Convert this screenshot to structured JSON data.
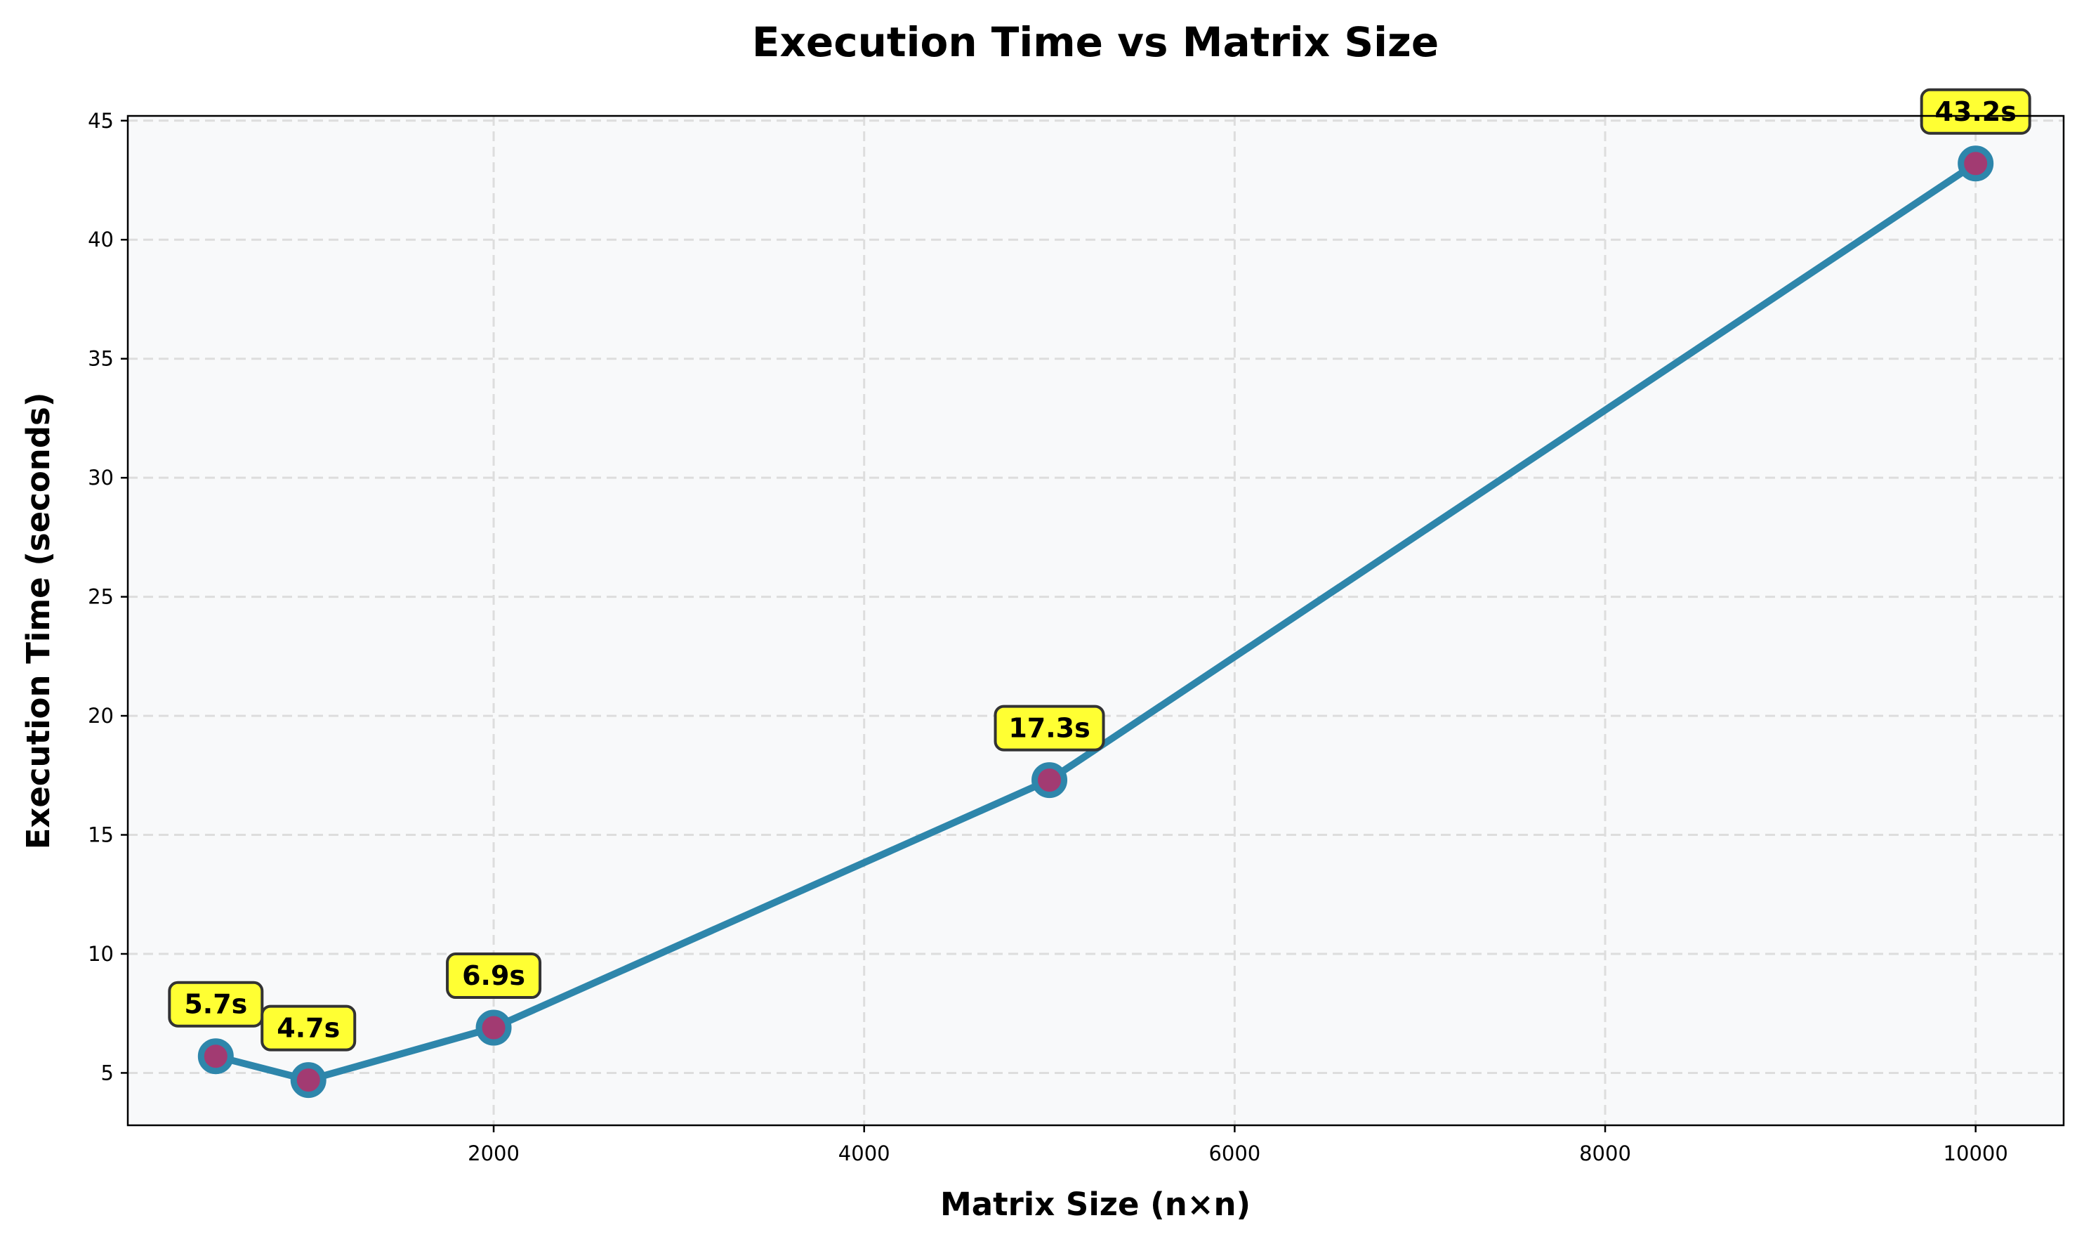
{
  "chart_data": {
    "type": "line",
    "title": "Execution Time vs Matrix Size",
    "xlabel": "Matrix Size (n×n)",
    "ylabel": "Execution Time (seconds)",
    "x": [
      500,
      1000,
      2000,
      5000,
      10000
    ],
    "series": [
      {
        "values": [
          5.7,
          4.7,
          6.9,
          17.3,
          43.2
        ],
        "labels": [
          "5.7s",
          "4.7s",
          "6.9s",
          "17.3s",
          "43.2s"
        ]
      }
    ],
    "xlim": [
      25,
      10475
    ],
    "ylim": [
      2.8,
      45.2
    ],
    "xticks": [
      2000,
      4000,
      6000,
      8000,
      10000
    ],
    "xtick_labels": [
      "2000",
      "4000",
      "6000",
      "8000",
      "10000"
    ],
    "yticks": [
      5,
      10,
      15,
      20,
      25,
      30,
      35,
      40,
      45
    ],
    "ytick_labels": [
      "5",
      "10",
      "15",
      "20",
      "25",
      "30",
      "35",
      "40",
      "45"
    ],
    "grid": true,
    "colors": {
      "line": "#2e86ab",
      "marker_fill": "#a23b72",
      "plot_background": "#f8f9fa",
      "label_box": "#ffff33",
      "label_border": "#333333",
      "grid": "#dddddd"
    }
  }
}
